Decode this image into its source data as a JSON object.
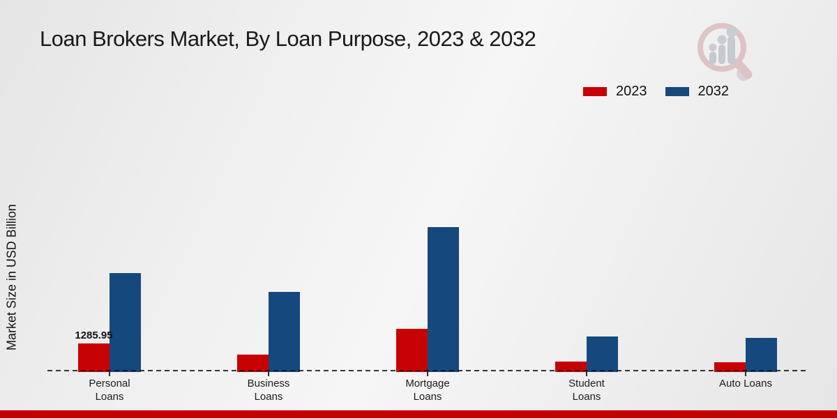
{
  "chart_data": {
    "type": "bar",
    "title": "Loan Brokers Market, By Loan Purpose, 2023 & 2032",
    "ylabel": "Market Size in USD Billion",
    "xlabel": "",
    "categories": [
      "Personal Loans",
      "Business Loans",
      "Mortgage Loans",
      "Student Loans",
      "Auto Loans"
    ],
    "category_label_lines": [
      [
        "Personal",
        "Loans"
      ],
      [
        "Business",
        "Loans"
      ],
      [
        "Mortgage",
        "Loans"
      ],
      [
        "Student",
        "Loans"
      ],
      [
        "Auto Loans"
      ]
    ],
    "series": [
      {
        "name": "2023",
        "color": "#c70202",
        "values": [
          1285.95,
          780,
          1930,
          470,
          440
        ]
      },
      {
        "name": "2032",
        "color": "#15497e",
        "values": [
          4420,
          3580,
          6480,
          1590,
          1530
        ]
      }
    ],
    "data_labels": [
      {
        "series_index": 0,
        "category_index": 0,
        "text": "1285.95"
      }
    ],
    "ylim": [
      0,
      6700
    ],
    "grid": false,
    "legend_position": "top-right",
    "baseline_style": "dashed"
  },
  "branding": {
    "watermark_icon": "magnifier-bar-chart-logo",
    "footer_bar_color": "#c40000"
  }
}
